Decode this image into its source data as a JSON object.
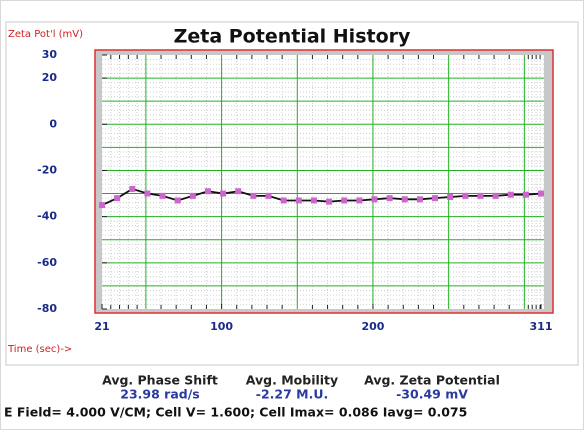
{
  "chart_data": {
    "type": "line",
    "title": "Zeta Potential History",
    "y_label": "Zeta Pot'l (mV)",
    "x_label": "Time (sec)->",
    "x": [
      21,
      31,
      41,
      51,
      61,
      71,
      81,
      91,
      101,
      111,
      121,
      131,
      141,
      151,
      161,
      171,
      181,
      191,
      201,
      211,
      221,
      231,
      241,
      251,
      261,
      271,
      281,
      291,
      301,
      311
    ],
    "values": [
      -35,
      -32,
      -28,
      -30,
      -31,
      -33,
      -31,
      -29,
      -30,
      -29,
      -31,
      -31,
      -33,
      -33,
      -33,
      -33.5,
      -33,
      -33,
      -32.5,
      -32,
      -32.5,
      -32.5,
      -32,
      -31.5,
      -31,
      -31,
      -31,
      -30.5,
      -30.5,
      -30
    ],
    "color": "#111111",
    "marker_color": "#cc66cc",
    "xlim": [
      21,
      311
    ],
    "xticks": [
      21,
      100,
      200,
      311
    ],
    "ylim": [
      -80,
      30
    ],
    "yticks": [
      30,
      20,
      0,
      -20,
      -40,
      -60,
      -80
    ],
    "x_gridlines": [
      50,
      100,
      150,
      200,
      250,
      300
    ],
    "y_gridlines": [
      20,
      10,
      0,
      -10,
      -20,
      -30,
      -40,
      -50,
      -60,
      -70
    ],
    "grid": true
  },
  "stats": [
    {
      "label": "Avg. Phase Shift",
      "value": "23.98 rad/s"
    },
    {
      "label": "Avg. Mobility",
      "value": "-2.27 M.U."
    },
    {
      "label": "Avg. Zeta Potential",
      "value": "-30.49 mV"
    }
  ],
  "footer": "E Field= 4.000 V/CM; Cell V= 1.600; Cell Imax= 0.086 Iavg= 0.075"
}
